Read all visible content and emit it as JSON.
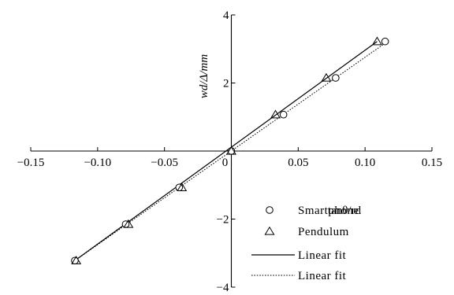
{
  "chart_data": {
    "type": "scatter",
    "xlabel": "tanθ/rd",
    "ylabel": "wd/Δ/mm",
    "xlim": [
      -0.15,
      0.15
    ],
    "ylim": [
      -4,
      4
    ],
    "x_ticks": [
      -0.15,
      -0.1,
      -0.05,
      0,
      0.05,
      0.1,
      0.15
    ],
    "x_tick_labels": [
      "−0.15",
      "−0.10",
      "−0.05",
      "0",
      "0.05",
      "0.10",
      "0.15"
    ],
    "y_ticks": [
      -4,
      -2,
      0,
      2,
      4
    ],
    "y_tick_labels": [
      "−4",
      "−2",
      "0",
      "2",
      "4"
    ],
    "grid": false,
    "legend_position": "bottom-right",
    "series": [
      {
        "name": "Smartphone",
        "marker": "circle",
        "x": [
          -0.117,
          -0.079,
          -0.039,
          0,
          0.039,
          0.078,
          0.115
        ],
        "y": [
          -3.22,
          -2.15,
          -1.07,
          0,
          1.07,
          2.15,
          3.22
        ]
      },
      {
        "name": "Pendulum",
        "marker": "triangle",
        "x": [
          -0.116,
          -0.077,
          -0.037,
          0,
          0.033,
          0.071,
          0.109
        ],
        "y": [
          -3.22,
          -2.15,
          -1.07,
          0,
          1.07,
          2.15,
          3.22
        ]
      },
      {
        "name": "Linear fit",
        "style": "solid",
        "x": [
          -0.117,
          0.109
        ],
        "y": [
          -3.22,
          3.22
        ]
      },
      {
        "name": "Linear fit",
        "style": "dotted",
        "x": [
          -0.117,
          0.115
        ],
        "y": [
          -3.22,
          3.17
        ]
      }
    ]
  }
}
